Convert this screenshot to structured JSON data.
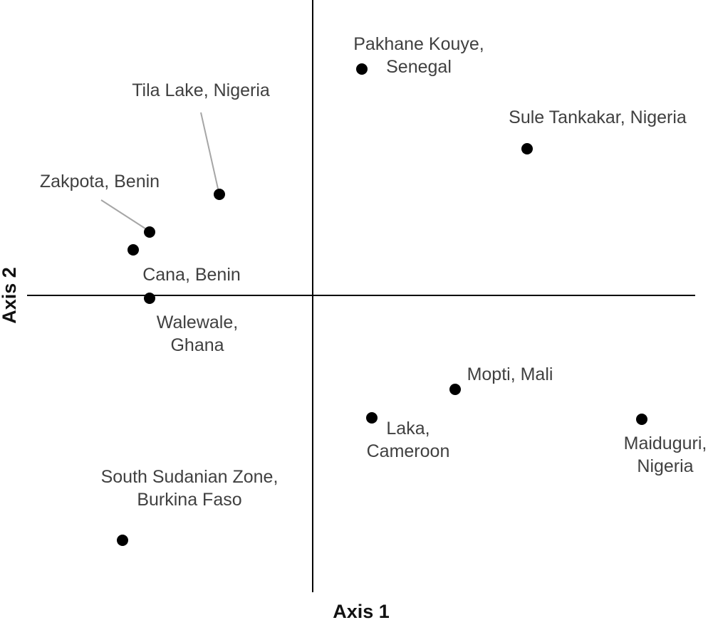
{
  "chart_data": {
    "type": "scatter",
    "title": "",
    "xlabel": "Axis 1",
    "ylabel": "Axis 2",
    "grid": false,
    "legend": "none",
    "colors": {
      "point": "#000000",
      "axis": "#000000",
      "label": "#404040",
      "leader": "#a6a6a6"
    },
    "points": [
      {
        "label": [
          "Pakhane Kouye,",
          "Senegal"
        ],
        "x": 0.69,
        "y": 3.18
      },
      {
        "label": [
          "Sule Tankakar, Nigeria"
        ],
        "x": 3.01,
        "y": 2.06
      },
      {
        "label": [
          "Tila Lake, Nigeria"
        ],
        "x": -1.31,
        "y": 1.42
      },
      {
        "label": [
          "Zakpota, Benin"
        ],
        "x": -2.29,
        "y": 0.89
      },
      {
        "label": [
          "Cana, Benin"
        ],
        "x": -2.52,
        "y": 0.64
      },
      {
        "label": [
          "Walewale,",
          "Ghana"
        ],
        "x": -2.29,
        "y": -0.04
      },
      {
        "label": [
          "Mopti, Mali"
        ],
        "x": 2.0,
        "y": -1.32
      },
      {
        "label": [
          "Laka,",
          "Cameroon"
        ],
        "x": 0.83,
        "y": -1.72
      },
      {
        "label": [
          "Maiduguri,",
          "Nigeria"
        ],
        "x": 4.62,
        "y": -1.74
      },
      {
        "label": [
          "South Sudanian Zone,",
          "Burkina Faso"
        ],
        "x": -2.67,
        "y": -3.44
      }
    ]
  }
}
